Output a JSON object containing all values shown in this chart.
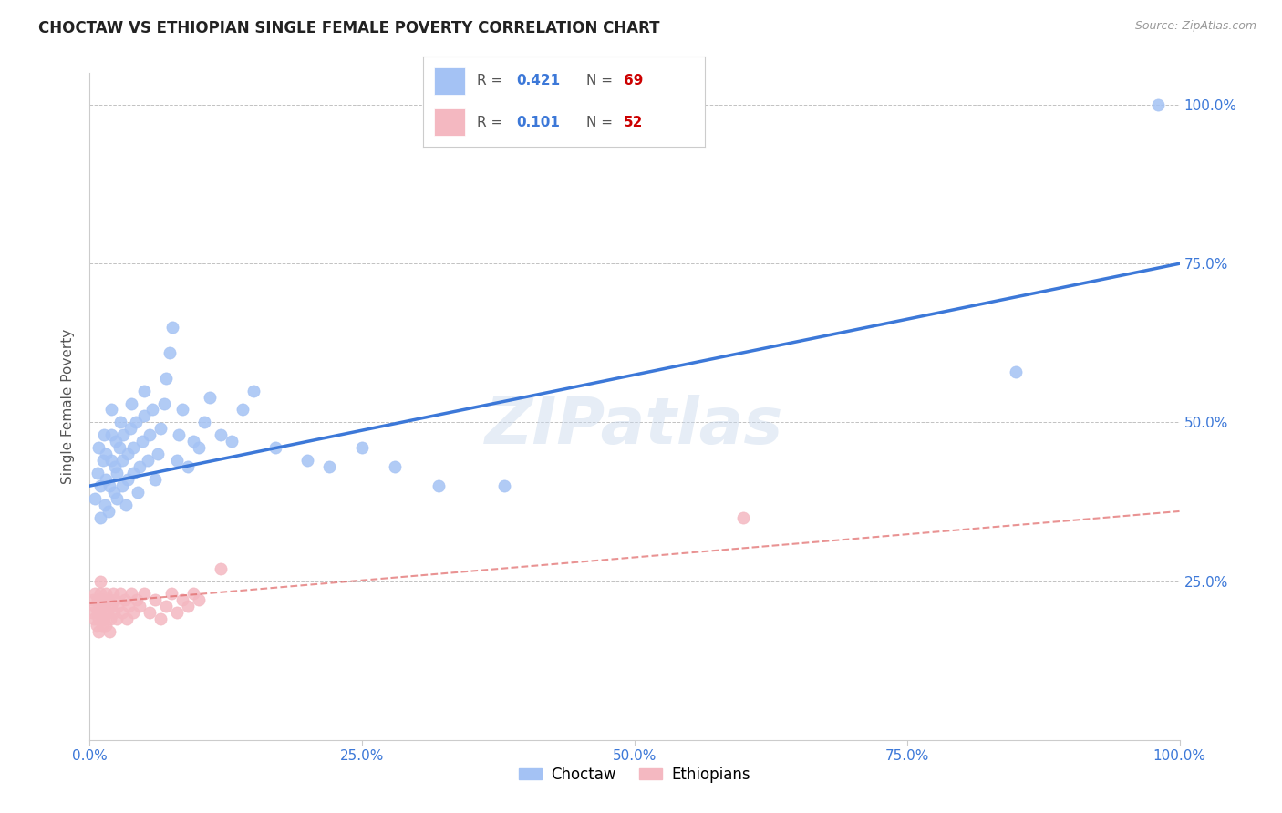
{
  "title": "CHOCTAW VS ETHIOPIAN SINGLE FEMALE POVERTY CORRELATION CHART",
  "source": "Source: ZipAtlas.com",
  "ylabel": "Single Female Poverty",
  "xlim": [
    0,
    1.0
  ],
  "ylim": [
    0,
    1.05
  ],
  "xtick_vals": [
    0.0,
    0.25,
    0.5,
    0.75,
    1.0
  ],
  "xtick_labels": [
    "0.0%",
    "25.0%",
    "50.0%",
    "75.0%",
    "100.0%"
  ],
  "ytick_vals": [
    0.25,
    0.5,
    0.75,
    1.0
  ],
  "ytick_labels": [
    "25.0%",
    "50.0%",
    "75.0%",
    "100.0%"
  ],
  "choctaw_color": "#a4c2f4",
  "ethiopian_color": "#f4b8c1",
  "choctaw_edge_color": "#6d9eeb",
  "ethiopian_edge_color": "#e06666",
  "choctaw_line_color": "#3c78d8",
  "ethiopian_line_color": "#e06666",
  "tick_color": "#3c78d8",
  "watermark": "ZIPatlas",
  "legend_R_color": "#3c78d8",
  "legend_N_color": "#cc0000",
  "choctaw_R": "0.421",
  "choctaw_N": "69",
  "ethiopian_R": "0.101",
  "ethiopian_N": "52",
  "choctaw_x": [
    0.005,
    0.007,
    0.008,
    0.01,
    0.01,
    0.012,
    0.013,
    0.014,
    0.015,
    0.015,
    0.017,
    0.018,
    0.02,
    0.02,
    0.02,
    0.022,
    0.023,
    0.024,
    0.025,
    0.025,
    0.027,
    0.028,
    0.03,
    0.03,
    0.031,
    0.033,
    0.035,
    0.035,
    0.037,
    0.038,
    0.04,
    0.04,
    0.042,
    0.044,
    0.046,
    0.048,
    0.05,
    0.05,
    0.053,
    0.055,
    0.057,
    0.06,
    0.062,
    0.065,
    0.068,
    0.07,
    0.073,
    0.076,
    0.08,
    0.082,
    0.085,
    0.09,
    0.095,
    0.1,
    0.105,
    0.11,
    0.12,
    0.13,
    0.14,
    0.15,
    0.17,
    0.2,
    0.22,
    0.25,
    0.28,
    0.32,
    0.38,
    0.85,
    0.98
  ],
  "choctaw_y": [
    0.38,
    0.42,
    0.46,
    0.35,
    0.4,
    0.44,
    0.48,
    0.37,
    0.41,
    0.45,
    0.36,
    0.4,
    0.44,
    0.48,
    0.52,
    0.39,
    0.43,
    0.47,
    0.38,
    0.42,
    0.46,
    0.5,
    0.4,
    0.44,
    0.48,
    0.37,
    0.41,
    0.45,
    0.49,
    0.53,
    0.42,
    0.46,
    0.5,
    0.39,
    0.43,
    0.47,
    0.51,
    0.55,
    0.44,
    0.48,
    0.52,
    0.41,
    0.45,
    0.49,
    0.53,
    0.57,
    0.61,
    0.65,
    0.44,
    0.48,
    0.52,
    0.43,
    0.47,
    0.46,
    0.5,
    0.54,
    0.48,
    0.47,
    0.52,
    0.55,
    0.46,
    0.44,
    0.43,
    0.46,
    0.43,
    0.4,
    0.4,
    0.58,
    1.0
  ],
  "ethiopian_x": [
    0.002,
    0.003,
    0.004,
    0.005,
    0.005,
    0.006,
    0.007,
    0.007,
    0.008,
    0.008,
    0.009,
    0.01,
    0.01,
    0.011,
    0.011,
    0.012,
    0.013,
    0.014,
    0.015,
    0.015,
    0.016,
    0.017,
    0.018,
    0.019,
    0.02,
    0.021,
    0.022,
    0.023,
    0.025,
    0.026,
    0.028,
    0.03,
    0.032,
    0.034,
    0.036,
    0.038,
    0.04,
    0.043,
    0.046,
    0.05,
    0.055,
    0.06,
    0.065,
    0.07,
    0.075,
    0.08,
    0.085,
    0.09,
    0.095,
    0.1,
    0.12,
    0.6
  ],
  "ethiopian_y": [
    0.2,
    0.22,
    0.19,
    0.21,
    0.23,
    0.18,
    0.2,
    0.22,
    0.17,
    0.19,
    0.21,
    0.23,
    0.25,
    0.18,
    0.2,
    0.22,
    0.19,
    0.21,
    0.23,
    0.18,
    0.2,
    0.22,
    0.17,
    0.19,
    0.21,
    0.23,
    0.2,
    0.22,
    0.19,
    0.21,
    0.23,
    0.2,
    0.22,
    0.19,
    0.21,
    0.23,
    0.2,
    0.22,
    0.21,
    0.23,
    0.2,
    0.22,
    0.19,
    0.21,
    0.23,
    0.2,
    0.22,
    0.21,
    0.23,
    0.22,
    0.27,
    0.35
  ]
}
